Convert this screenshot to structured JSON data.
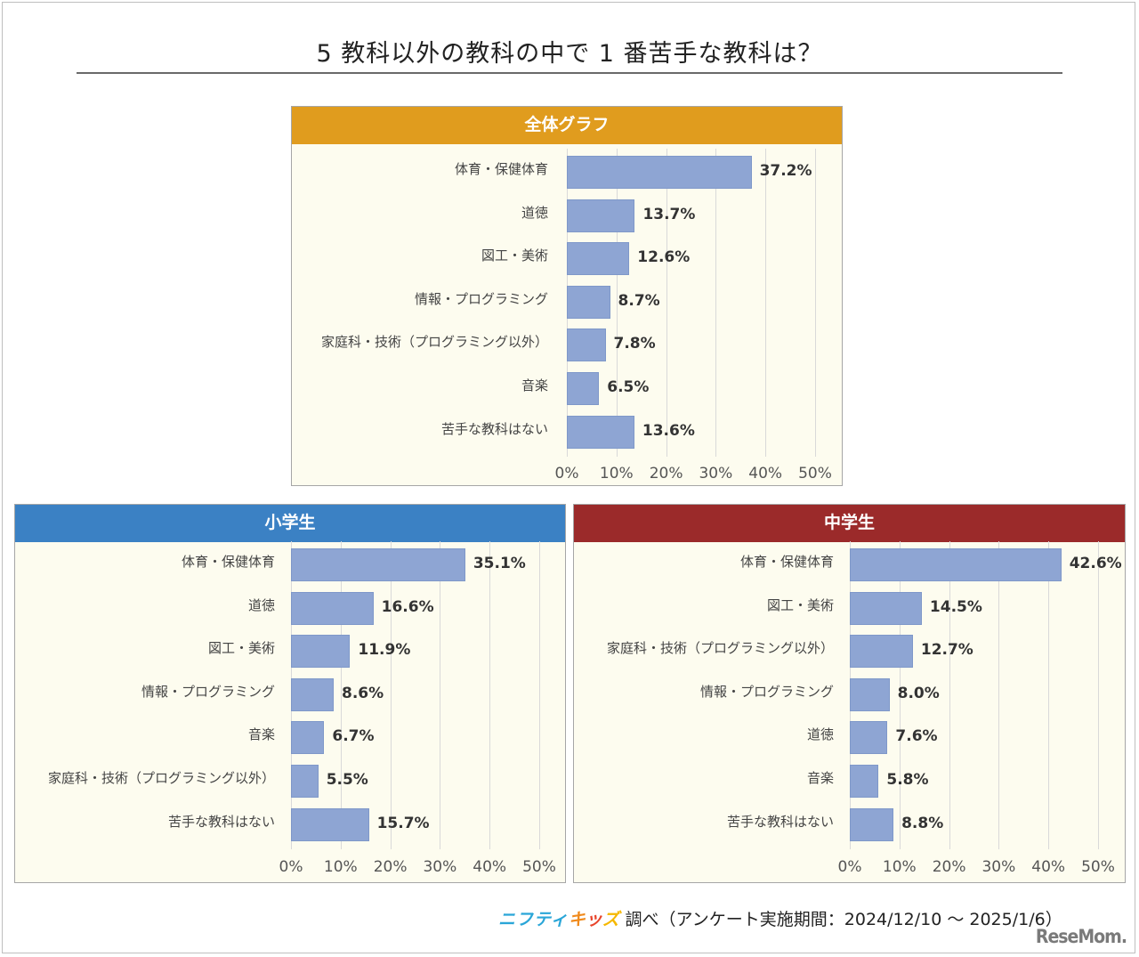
{
  "title": "5 教科以外の教科の中で 1 番苦手な教科は？",
  "footer": {
    "brand_nifty": "ニフティ",
    "brand_kids": [
      "キ",
      "ッ",
      "ズ",
      " "
    ],
    "text": "調べ（アンケート実施期間：2024/12/10 ～ 2025/1/6）",
    "logo": "ReseMom."
  },
  "colors": {
    "overall_header": "#e09c1e",
    "elementary_header": "#3b81c4",
    "junior_header": "#9b2a2a",
    "bar": "#8ea5d3",
    "plot_bg": "#fdfcef"
  },
  "chart_data": [
    {
      "type": "bar",
      "orientation": "horizontal",
      "title": "全体グラフ",
      "categories": [
        "体育・保健体育",
        "道徳",
        "図工・美術",
        "情報・プログラミング",
        "家庭科・技術（プログラミング以外）",
        "音楽",
        "苦手な教科はない"
      ],
      "values": [
        37.2,
        13.7,
        12.6,
        8.7,
        7.8,
        6.5,
        13.6
      ],
      "labels": [
        "37.2%",
        "13.7%",
        "12.6%",
        "8.7%",
        "7.8%",
        "6.5%",
        "13.6%"
      ],
      "xlim": [
        0,
        50
      ],
      "xticks": [
        "0%",
        "10%",
        "20%",
        "30%",
        "40%",
        "50%"
      ],
      "grid": true,
      "legend": "none"
    },
    {
      "type": "bar",
      "orientation": "horizontal",
      "title": "小学生",
      "categories": [
        "体育・保健体育",
        "道徳",
        "図工・美術",
        "情報・プログラミング",
        "音楽",
        "家庭科・技術（プログラミング以外）",
        "苦手な教科はない"
      ],
      "values": [
        35.1,
        16.6,
        11.9,
        8.6,
        6.7,
        5.5,
        15.7
      ],
      "labels": [
        "35.1%",
        "16.6%",
        "11.9%",
        "8.6%",
        "6.7%",
        "5.5%",
        "15.7%"
      ],
      "xlim": [
        0,
        50
      ],
      "xticks": [
        "0%",
        "10%",
        "20%",
        "30%",
        "40%",
        "50%"
      ],
      "grid": true,
      "legend": "none"
    },
    {
      "type": "bar",
      "orientation": "horizontal",
      "title": "中学生",
      "categories": [
        "体育・保健体育",
        "図工・美術",
        "家庭科・技術（プログラミング以外）",
        "情報・プログラミング",
        "道徳",
        "音楽",
        "苦手な教科はない"
      ],
      "values": [
        42.6,
        14.5,
        12.7,
        8.0,
        7.6,
        5.8,
        8.8
      ],
      "labels": [
        "42.6%",
        "14.5%",
        "12.7%",
        "8.0%",
        "7.6%",
        "5.8%",
        "8.8%"
      ],
      "xlim": [
        0,
        50
      ],
      "xticks": [
        "0%",
        "10%",
        "20%",
        "30%",
        "40%",
        "50%"
      ],
      "grid": true,
      "legend": "none"
    }
  ]
}
